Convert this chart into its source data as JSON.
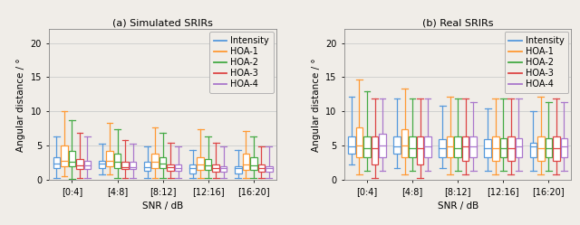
{
  "title_left": "(a) Simulated SRIRs",
  "title_right": "(b) Real SRIRs",
  "ylabel": "Angular distance / °",
  "xlabel": "SNR / dB",
  "xtick_labels": [
    "[0:4]",
    "[4:8]",
    "[8:12]",
    "[12:16]",
    "[16:20]"
  ],
  "ylim": [
    0,
    22
  ],
  "yticks": [
    0,
    5,
    10,
    15,
    20
  ],
  "legend_labels": [
    "Intensity",
    "HOA-1",
    "HOA-2",
    "HOA-3",
    "HOA-4"
  ],
  "colors": [
    "#5599dd",
    "#ff9933",
    "#44aa44",
    "#dd4444",
    "#aa77cc"
  ],
  "n_groups": 5,
  "n_methods": 5,
  "group_width": 0.85,
  "box_fill": "white",
  "linewidth": 0.9,
  "sim_data": {
    "whislo": [
      [
        0.3,
        0.5,
        0.1,
        0.3,
        0.3
      ],
      [
        0.8,
        0.8,
        0.3,
        0.3,
        0.3
      ],
      [
        0.3,
        0.3,
        0.3,
        0.3,
        0.3
      ],
      [
        0.3,
        0.3,
        0.3,
        0.3,
        0.3
      ],
      [
        0.3,
        0.3,
        0.3,
        0.3,
        0.3
      ]
    ],
    "q1": [
      [
        1.7,
        2.0,
        2.0,
        1.6,
        1.6
      ],
      [
        1.7,
        2.0,
        1.8,
        1.6,
        1.6
      ],
      [
        1.3,
        1.8,
        1.8,
        1.3,
        1.3
      ],
      [
        1.0,
        1.5,
        1.5,
        1.2,
        1.2
      ],
      [
        1.0,
        1.5,
        1.5,
        1.2,
        1.2
      ]
    ],
    "med": [
      [
        2.4,
        2.8,
        2.7,
        2.1,
        2.1
      ],
      [
        2.4,
        2.8,
        2.6,
        1.9,
        1.9
      ],
      [
        1.9,
        2.6,
        2.4,
        1.9,
        1.7
      ],
      [
        1.7,
        2.3,
        2.1,
        1.7,
        1.7
      ],
      [
        1.7,
        2.3,
        2.1,
        1.7,
        1.7
      ]
    ],
    "q3": [
      [
        3.3,
        5.0,
        4.3,
        3.0,
        2.8
      ],
      [
        2.8,
        4.3,
        3.8,
        2.6,
        2.6
      ],
      [
        2.6,
        3.8,
        3.3,
        2.3,
        2.3
      ],
      [
        2.3,
        3.3,
        3.0,
        2.3,
        2.0
      ],
      [
        2.0,
        3.8,
        3.3,
        2.3,
        2.0
      ]
    ],
    "whishi": [
      [
        6.3,
        10.0,
        8.7,
        6.9,
        6.3
      ],
      [
        5.3,
        8.4,
        7.4,
        5.8,
        5.3
      ],
      [
        4.9,
        7.7,
        6.9,
        5.4,
        4.9
      ],
      [
        4.4,
        7.4,
        6.4,
        5.4,
        4.9
      ],
      [
        4.4,
        7.1,
        6.4,
        4.9,
        4.9
      ]
    ]
  },
  "real_data": {
    "whislo": [
      [
        2.3,
        0.8,
        1.3,
        0.3,
        1.3
      ],
      [
        1.8,
        0.8,
        1.3,
        0.3,
        1.3
      ],
      [
        1.8,
        0.8,
        1.3,
        0.8,
        1.3
      ],
      [
        1.3,
        0.8,
        1.3,
        0.8,
        1.3
      ],
      [
        1.3,
        0.8,
        1.3,
        0.8,
        1.3
      ]
    ],
    "q1": [
      [
        3.8,
        3.3,
        3.3,
        2.3,
        3.3
      ],
      [
        3.8,
        3.3,
        3.3,
        2.3,
        3.3
      ],
      [
        3.3,
        3.3,
        3.3,
        2.8,
        3.3
      ],
      [
        3.3,
        2.8,
        3.3,
        2.8,
        3.3
      ],
      [
        3.3,
        2.8,
        3.3,
        2.8,
        3.3
      ]
    ],
    "med": [
      [
        4.9,
        5.1,
        4.7,
        4.7,
        5.1
      ],
      [
        4.9,
        5.1,
        4.7,
        4.7,
        4.9
      ],
      [
        4.7,
        4.9,
        4.7,
        4.9,
        4.9
      ],
      [
        4.7,
        4.7,
        4.7,
        4.7,
        4.9
      ],
      [
        4.9,
        4.7,
        4.7,
        4.7,
        4.9
      ]
    ],
    "q3": [
      [
        6.4,
        7.7,
        6.4,
        6.4,
        6.7
      ],
      [
        6.4,
        7.4,
        6.4,
        6.4,
        6.4
      ],
      [
        5.9,
        6.4,
        6.4,
        6.4,
        6.4
      ],
      [
        5.9,
        6.4,
        6.1,
        6.4,
        6.1
      ],
      [
        5.4,
        6.4,
        6.1,
        6.4,
        6.1
      ]
    ],
    "whishi": [
      [
        12.1,
        14.7,
        12.9,
        11.9,
        11.9
      ],
      [
        11.9,
        13.4,
        11.9,
        11.9,
        11.9
      ],
      [
        10.9,
        12.1,
        11.9,
        11.9,
        11.4
      ],
      [
        10.4,
        11.9,
        11.9,
        11.9,
        11.9
      ],
      [
        10.1,
        12.1,
        11.4,
        11.9,
        11.4
      ]
    ]
  },
  "fig_facecolor": "#f0ede8",
  "axes_facecolor": "#f0ede8",
  "grid_color": "#cccccc",
  "title_fontsize": 8,
  "tick_fontsize": 7,
  "label_fontsize": 7.5,
  "legend_fontsize": 7
}
